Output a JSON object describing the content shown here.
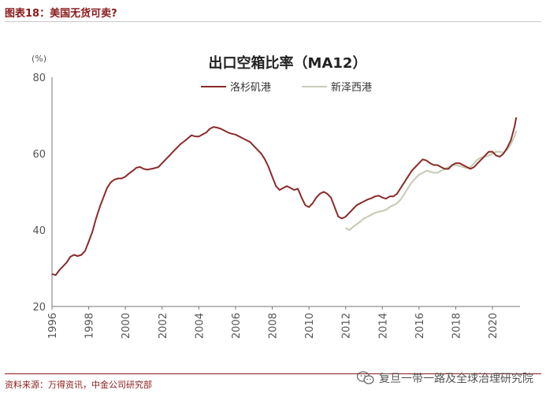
{
  "figure": {
    "title": "图表18：美国无货可卖?",
    "source": "资料来源：万得资讯，中金公司研究部",
    "watermark": "复旦一带一路及全球治理研究院"
  },
  "colors": {
    "la": "#8b2a2a",
    "nj": "#c9cdb8",
    "accent": "#8b1a1a"
  },
  "chart_data": {
    "type": "line",
    "title": "出口空箱比率（MA12）",
    "ylabel": "(%)",
    "xlabel": "",
    "xlim": [
      1996,
      2021.5
    ],
    "ylim": [
      20,
      80
    ],
    "yticks": [
      20,
      40,
      60,
      80
    ],
    "yticklabels": [
      "20",
      "40",
      "60",
      "80"
    ],
    "xticks": [
      1996,
      1998,
      2000,
      2002,
      2004,
      2006,
      2008,
      2010,
      2012,
      2014,
      2016,
      2018,
      2020
    ],
    "xticklabels": [
      "1996",
      "1998",
      "2000",
      "2002",
      "2004",
      "2006",
      "2008",
      "2010",
      "2012",
      "2014",
      "2016",
      "2018",
      "2020"
    ],
    "grid": false,
    "legend_position": "top",
    "series": [
      {
        "name": "洛杉矶港",
        "color": "#8b2a2a",
        "x": [
          1996.0,
          1996.2,
          1996.4,
          1996.6,
          1996.8,
          1997.0,
          1997.2,
          1997.4,
          1997.6,
          1997.8,
          1998.0,
          1998.2,
          1998.4,
          1998.6,
          1998.8,
          1999.0,
          1999.2,
          1999.4,
          1999.6,
          1999.8,
          2000.0,
          2000.2,
          2000.4,
          2000.6,
          2000.8,
          2001.0,
          2001.2,
          2001.4,
          2001.6,
          2001.8,
          2002.0,
          2002.2,
          2002.4,
          2002.6,
          2002.8,
          2003.0,
          2003.2,
          2003.4,
          2003.6,
          2003.8,
          2004.0,
          2004.2,
          2004.4,
          2004.6,
          2004.8,
          2005.0,
          2005.2,
          2005.4,
          2005.6,
          2005.8,
          2006.0,
          2006.2,
          2006.4,
          2006.6,
          2006.8,
          2007.0,
          2007.2,
          2007.4,
          2007.6,
          2007.8,
          2008.0,
          2008.2,
          2008.4,
          2008.6,
          2008.8,
          2009.0,
          2009.2,
          2009.4,
          2009.6,
          2009.8,
          2010.0,
          2010.2,
          2010.4,
          2010.6,
          2010.8,
          2011.0,
          2011.2,
          2011.4,
          2011.6,
          2011.8,
          2012.0,
          2012.2,
          2012.4,
          2012.6,
          2012.8,
          2013.0,
          2013.2,
          2013.4,
          2013.6,
          2013.8,
          2014.0,
          2014.2,
          2014.4,
          2014.6,
          2014.8,
          2015.0,
          2015.2,
          2015.4,
          2015.6,
          2015.8,
          2016.0,
          2016.2,
          2016.4,
          2016.6,
          2016.8,
          2017.0,
          2017.2,
          2017.4,
          2017.6,
          2017.8,
          2018.0,
          2018.2,
          2018.4,
          2018.6,
          2018.8,
          2019.0,
          2019.2,
          2019.4,
          2019.6,
          2019.8,
          2020.0,
          2020.2,
          2020.4,
          2020.6,
          2020.8,
          2021.0,
          2021.2,
          2021.3
        ],
        "values": [
          28.5,
          28.2,
          29.5,
          30.5,
          31.5,
          33.0,
          33.5,
          33.2,
          33.5,
          34.5,
          37.0,
          39.5,
          43.0,
          46.0,
          48.5,
          51.0,
          52.5,
          53.2,
          53.5,
          53.5,
          54.0,
          54.8,
          55.5,
          56.3,
          56.5,
          56.0,
          55.8,
          56.0,
          56.2,
          56.5,
          57.5,
          58.5,
          59.5,
          60.5,
          61.5,
          62.5,
          63.2,
          64.0,
          64.8,
          64.5,
          64.5,
          65.0,
          65.5,
          66.5,
          67.0,
          66.8,
          66.5,
          66.0,
          65.5,
          65.2,
          65.0,
          64.5,
          64.0,
          63.5,
          63.0,
          62.0,
          61.0,
          60.0,
          58.5,
          56.5,
          54.0,
          51.5,
          50.5,
          51.0,
          51.5,
          51.0,
          50.5,
          50.8,
          48.5,
          46.5,
          46.0,
          47.0,
          48.5,
          49.5,
          50.0,
          49.5,
          48.5,
          46.0,
          43.5,
          43.0,
          43.5,
          44.5,
          45.5,
          46.5,
          47.0,
          47.5,
          48.0,
          48.3,
          48.8,
          49.0,
          48.5,
          48.2,
          48.8,
          48.8,
          49.5,
          51.0,
          52.5,
          54.0,
          55.5,
          56.5,
          57.5,
          58.5,
          58.2,
          57.5,
          57.0,
          57.0,
          56.5,
          56.0,
          56.0,
          57.0,
          57.5,
          57.5,
          57.0,
          56.5,
          56.0,
          56.5,
          57.5,
          58.5,
          59.5,
          60.5,
          60.5,
          59.5,
          59.2,
          60.0,
          61.5,
          63.5,
          67.0,
          69.5
        ]
      },
      {
        "name": "新泽西港",
        "color": "#c9cdb8",
        "x": [
          2012.0,
          2012.2,
          2012.4,
          2012.6,
          2012.8,
          2013.0,
          2013.2,
          2013.4,
          2013.6,
          2013.8,
          2014.0,
          2014.2,
          2014.4,
          2014.6,
          2014.8,
          2015.0,
          2015.2,
          2015.4,
          2015.6,
          2015.8,
          2016.0,
          2016.2,
          2016.4,
          2016.6,
          2016.8,
          2017.0,
          2017.2,
          2017.4,
          2017.6,
          2017.8,
          2018.0,
          2018.2,
          2018.4,
          2018.6,
          2018.8,
          2019.0,
          2019.2,
          2019.4,
          2019.6,
          2019.8,
          2020.0,
          2020.2,
          2020.4,
          2020.6,
          2020.8,
          2021.0,
          2021.2,
          2021.3
        ],
        "values": [
          40.5,
          40.0,
          40.8,
          41.5,
          42.2,
          43.0,
          43.5,
          44.0,
          44.5,
          44.8,
          45.0,
          45.3,
          46.0,
          46.5,
          47.0,
          48.0,
          49.5,
          51.0,
          52.5,
          53.5,
          54.5,
          55.0,
          55.5,
          55.3,
          55.0,
          55.0,
          55.5,
          56.0,
          56.5,
          56.8,
          57.0,
          56.8,
          56.5,
          56.2,
          56.5,
          57.5,
          58.5,
          59.0,
          59.2,
          59.5,
          60.0,
          60.5,
          60.5,
          60.2,
          61.0,
          62.5,
          64.5,
          66.0
        ]
      }
    ]
  }
}
